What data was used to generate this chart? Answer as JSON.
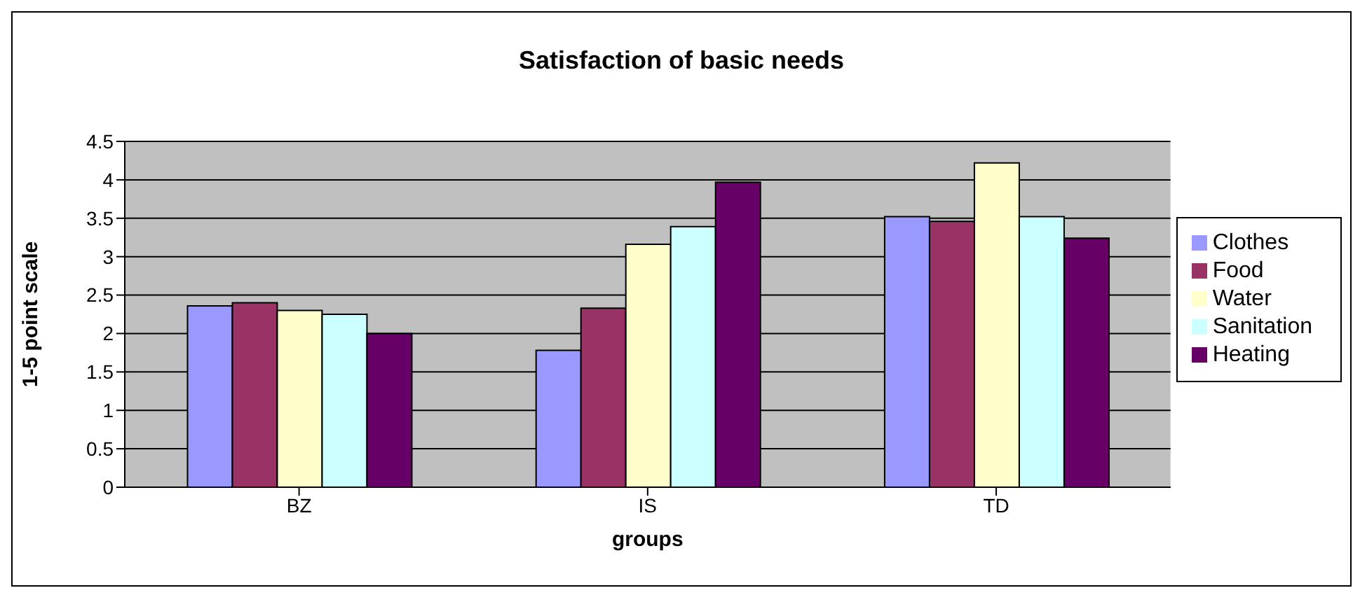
{
  "chart_data": {
    "type": "bar",
    "title": "Satisfaction of basic needs",
    "xlabel": "groups",
    "ylabel": "1-5 point scale",
    "categories": [
      "BZ",
      "IS",
      "TD"
    ],
    "series": [
      {
        "name": "Clothes",
        "color": "#9999ff",
        "values": [
          2.36,
          1.78,
          3.52
        ]
      },
      {
        "name": "Food",
        "color": "#993366",
        "values": [
          2.4,
          2.33,
          3.46
        ]
      },
      {
        "name": "Water",
        "color": "#ffffcc",
        "values": [
          2.3,
          3.16,
          4.22
        ]
      },
      {
        "name": "Sanitation",
        "color": "#ccffff",
        "values": [
          2.25,
          3.39,
          3.52
        ]
      },
      {
        "name": "Heating",
        "color": "#660066",
        "values": [
          2.0,
          3.97,
          3.24
        ]
      }
    ],
    "ylim": [
      0,
      4.5
    ],
    "yticks": [
      0,
      0.5,
      1,
      1.5,
      2,
      2.5,
      3,
      3.5,
      4,
      4.5
    ],
    "grid": "y",
    "legend": "right"
  }
}
